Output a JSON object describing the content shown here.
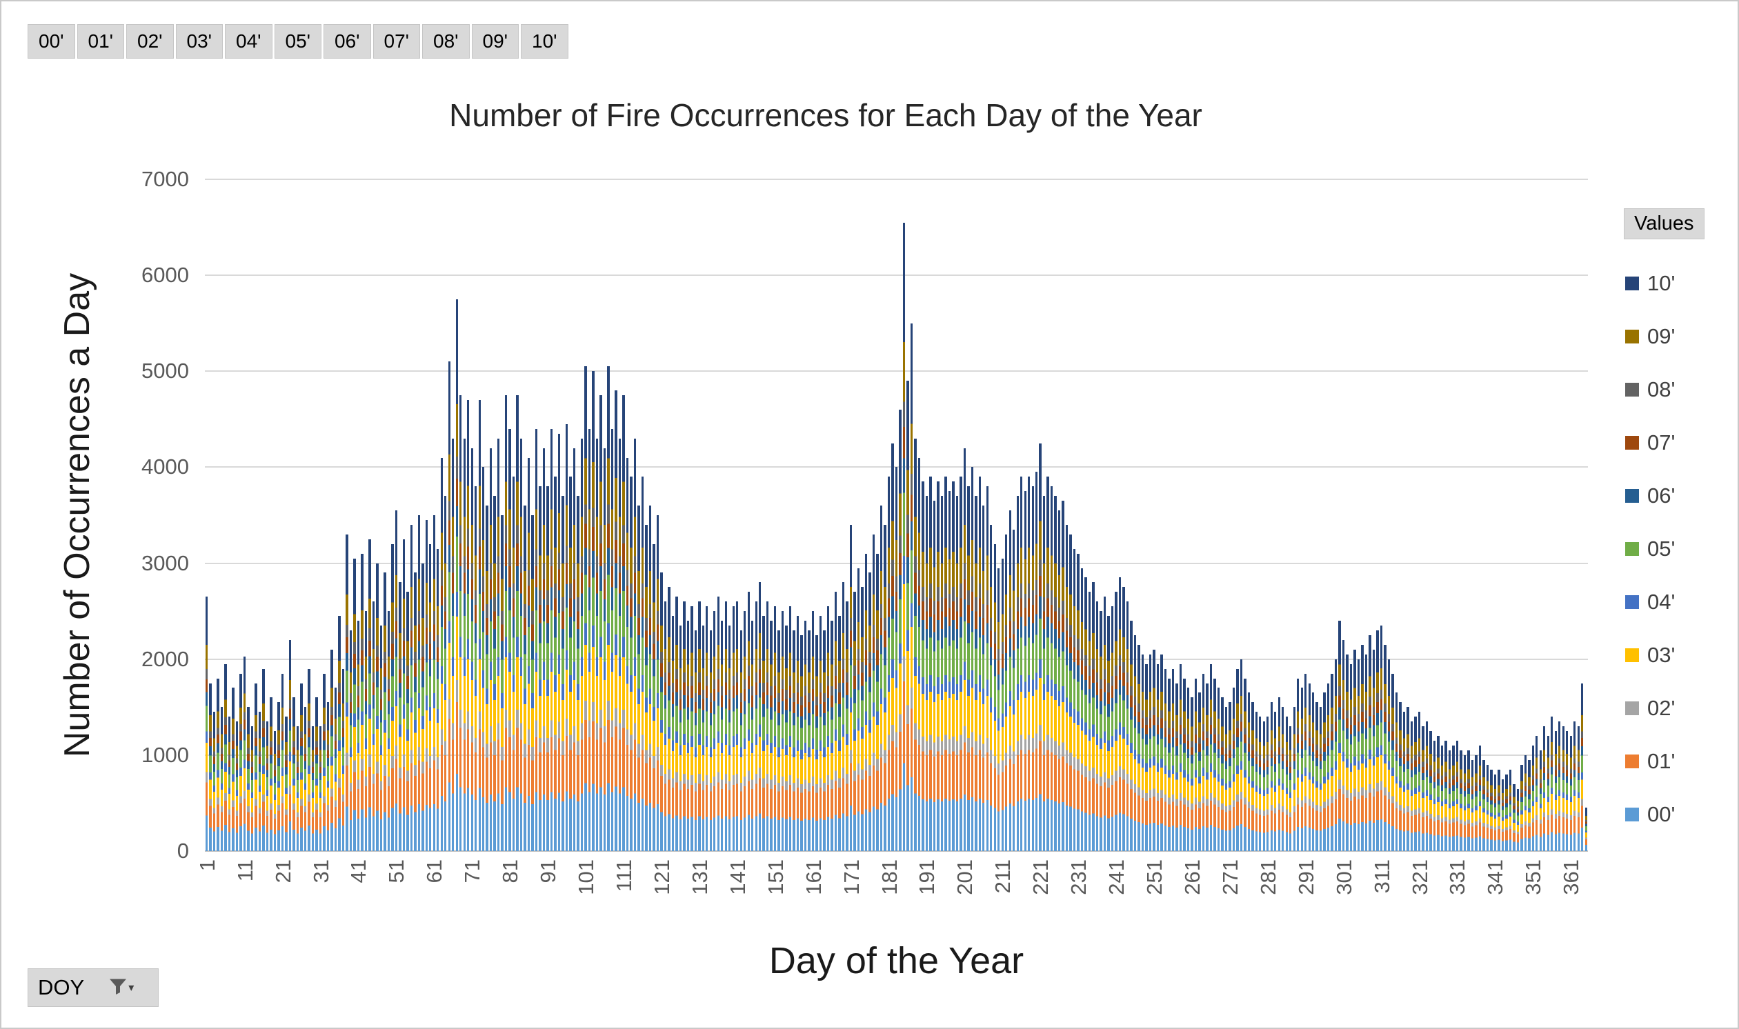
{
  "filter_buttons": [
    "00'",
    "01'",
    "02'",
    "03'",
    "04'",
    "05'",
    "06'",
    "07'",
    "08'",
    "09'",
    "10'"
  ],
  "legend": {
    "title": "Values",
    "order_top_to_bottom": [
      "10'",
      "09'",
      "08'",
      "07'",
      "06'",
      "05'",
      "04'",
      "03'",
      "02'",
      "01'",
      "00'"
    ]
  },
  "axis_field_button": {
    "label": "DOY"
  },
  "colors": {
    "gridline": "#D9D9D9",
    "zero_axis": "#BFBFBF",
    "tick_label": "#595959",
    "button_bg": "#D9D9D9",
    "title_text": "#262626"
  },
  "chart_data": {
    "type": "bar",
    "stacked": true,
    "title": "Number of Fire Occurrences for Each Day of the Year",
    "xlabel": "Day of the Year",
    "ylabel": "Number of Occurrences a Day",
    "ylim": [
      0,
      7000
    ],
    "ytick_interval": 1000,
    "x_range": [
      1,
      365
    ],
    "xticks": [
      1,
      11,
      21,
      31,
      41,
      51,
      61,
      71,
      81,
      91,
      101,
      111,
      121,
      131,
      141,
      151,
      161,
      171,
      181,
      191,
      201,
      211,
      221,
      231,
      241,
      251,
      261,
      271,
      281,
      291,
      301,
      311,
      321,
      331,
      341,
      351,
      361
    ],
    "grid": true,
    "legend_position": "right",
    "series_order_bottom_to_top": [
      "00'",
      "01'",
      "02'",
      "03'",
      "04'",
      "05'",
      "06'",
      "07'",
      "08'",
      "09'",
      "10'"
    ],
    "series_colors": {
      "00'": "#5B9BD5",
      "01'": "#ED7D31",
      "02'": "#A5A5A5",
      "03'": "#FFC000",
      "04'": "#4472C4",
      "05'": "#70AD47",
      "06'": "#255E91",
      "07'": "#9E480E",
      "08'": "#636363",
      "09'": "#997300",
      "10'": "#264478"
    },
    "series_share_estimate": {
      "00'": 0.14,
      "01'": 0.13,
      "02'": 0.04,
      "03'": 0.115,
      "04'": 0.045,
      "05'": 0.1,
      "06'": 0.055,
      "07'": 0.05,
      "08'": 0.04,
      "09'": 0.095,
      "10'": 0.19
    },
    "daily_totals_estimate": [
      2650,
      1750,
      1450,
      1800,
      1500,
      1950,
      1400,
      1700,
      1350,
      1850,
      2030,
      1500,
      1300,
      1750,
      1450,
      1900,
      1350,
      1600,
      1250,
      1550,
      1850,
      1400,
      2200,
      1600,
      1300,
      1750,
      1500,
      1900,
      1300,
      1600,
      1300,
      1850,
      1550,
      2100,
      1700,
      2450,
      1900,
      3300,
      2300,
      3050,
      2400,
      3100,
      2500,
      3250,
      2600,
      3000,
      2350,
      2900,
      2500,
      3200,
      3550,
      2800,
      3250,
      2700,
      3400,
      2900,
      3500,
      3000,
      3450,
      3200,
      3500,
      3150,
      4100,
      3700,
      5100,
      4300,
      5750,
      4750,
      4300,
      4700,
      4200,
      3800,
      4700,
      4000,
      3600,
      4200,
      3700,
      4300,
      3500,
      4750,
      4400,
      3900,
      4750,
      4300,
      3600,
      4100,
      3500,
      4400,
      3800,
      4200,
      3800,
      4400,
      3900,
      4350,
      3700,
      4450,
      3900,
      4200,
      3700,
      4300,
      5050,
      4400,
      5000,
      4300,
      4750,
      4200,
      5050,
      4400,
      4800,
      4300,
      4750,
      4100,
      3900,
      4300,
      3600,
      3900,
      3400,
      3600,
      3200,
      3500,
      2900,
      2600,
      2750,
      2450,
      2650,
      2350,
      2600,
      2400,
      2550,
      2300,
      2600,
      2350,
      2550,
      2300,
      2500,
      2650,
      2400,
      2600,
      2350,
      2550,
      2600,
      2300,
      2500,
      2700,
      2400,
      2600,
      2800,
      2450,
      2600,
      2400,
      2550,
      2300,
      2500,
      2350,
      2550,
      2300,
      2450,
      2250,
      2400,
      2300,
      2500,
      2250,
      2450,
      2300,
      2550,
      2400,
      2700,
      2450,
      2800,
      2600,
      3400,
      2700,
      2950,
      2750,
      3100,
      2900,
      3300,
      3100,
      3600,
      3400,
      3900,
      4250,
      4000,
      4600,
      6550,
      4900,
      5500,
      4300,
      4100,
      3850,
      3700,
      3900,
      3650,
      3850,
      3700,
      3900,
      3750,
      3850,
      3700,
      3900,
      4200,
      3800,
      4000,
      3700,
      3900,
      3600,
      3800,
      3400,
      3200,
      2950,
      3050,
      3300,
      3550,
      3350,
      3700,
      3900,
      3750,
      3900,
      3800,
      3950,
      4250,
      3700,
      3900,
      3800,
      3700,
      3550,
      3650,
      3400,
      3300,
      3150,
      3100,
      2950,
      2850,
      2700,
      2800,
      2600,
      2500,
      2650,
      2450,
      2550,
      2700,
      2850,
      2750,
      2600,
      2400,
      2250,
      2150,
      2050,
      1950,
      2050,
      2100,
      1950,
      2050,
      1900,
      1800,
      1900,
      1750,
      1950,
      1800,
      1700,
      1600,
      1800,
      1650,
      1850,
      1750,
      1950,
      1800,
      1700,
      1600,
      1500,
      1550,
      1700,
      1900,
      2000,
      1800,
      1650,
      1550,
      1450,
      1400,
      1350,
      1400,
      1550,
      1450,
      1600,
      1500,
      1400,
      1300,
      1500,
      1800,
      1700,
      1850,
      1750,
      1650,
      1550,
      1500,
      1650,
      1750,
      1850,
      2000,
      2400,
      2200,
      2050,
      1950,
      2100,
      2000,
      2150,
      2050,
      2250,
      2100,
      2300,
      2350,
      2150,
      2000,
      1850,
      1650,
      1550,
      1450,
      1500,
      1350,
      1400,
      1450,
      1300,
      1350,
      1250,
      1150,
      1200,
      1100,
      1150,
      1050,
      1100,
      1150,
      1050,
      1000,
      1050,
      950,
      1000,
      1100,
      950,
      900,
      850,
      800,
      850,
      750,
      800,
      850,
      700,
      650,
      900,
      1000,
      950,
      1100,
      1200,
      1050,
      1300,
      1200,
      1400,
      1250,
      1350,
      1300,
      1250,
      1200,
      1350,
      1300,
      1750,
      450
    ]
  }
}
